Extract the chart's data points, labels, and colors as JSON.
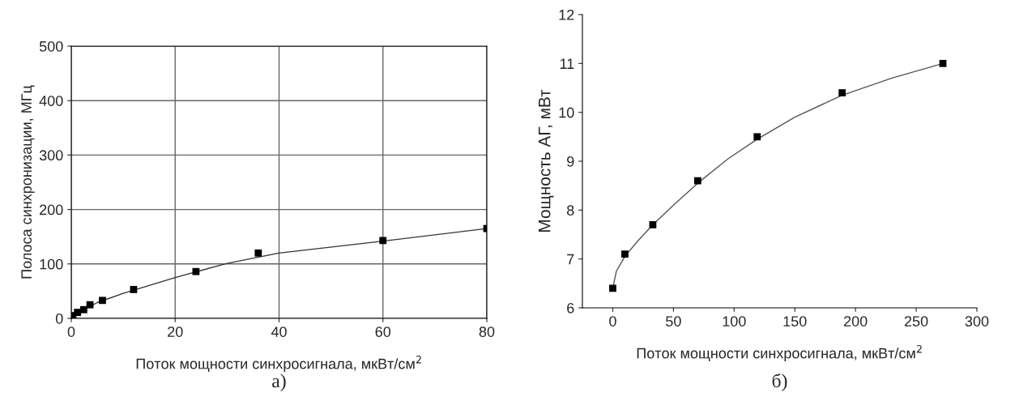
{
  "chart_data": [
    {
      "type": "scatter",
      "xlabel": "Поток мощности синхросигнала, мкВт/см$^{2}$",
      "ylabel": "Полоса синхронизации, МГц",
      "annotations": [
        "а)"
      ],
      "xlim": [
        0,
        80
      ],
      "ylim": [
        0,
        500
      ],
      "xticks": [
        0,
        20,
        40,
        60,
        80
      ],
      "yticks": [
        0,
        100,
        200,
        300,
        400,
        500
      ],
      "grid": true,
      "marker": "square",
      "series": [
        {
          "color": "#000000",
          "x": [
            0.3,
            1.2,
            2.4,
            3.6,
            6,
            12,
            24,
            36,
            60,
            80
          ],
          "values": [
            5,
            11,
            16,
            25,
            33,
            53,
            86,
            120,
            143,
            165
          ]
        },
        {
          "type": "line",
          "marker": "none",
          "color": "#333333",
          "x": [
            0.3,
            5,
            10,
            20,
            30,
            40,
            60,
            80
          ],
          "values": [
            5,
            29,
            46,
            75,
            101,
            120,
            142,
            165
          ]
        }
      ]
    },
    {
      "type": "scatter",
      "xlabel": "Поток мощности синхросигнала, мкВт/см$^{2}$",
      "ylabel": "Мощность АГ, мВт",
      "annotations": [
        "б)"
      ],
      "xlim": [
        -25,
        300
      ],
      "ylim": [
        6,
        12
      ],
      "xticks": [
        0,
        50,
        100,
        150,
        200,
        250,
        300
      ],
      "yticks": [
        6,
        7,
        8,
        9,
        10,
        11,
        12
      ],
      "grid": false,
      "marker": "square",
      "series": [
        {
          "color": "#000000",
          "x": [
            0,
            10,
            33,
            70,
            119,
            189,
            272
          ],
          "values": [
            6.4,
            7.1,
            7.7,
            8.6,
            9.5,
            10.4,
            11.0
          ]
        },
        {
          "type": "line",
          "marker": "none",
          "color": "#555555",
          "x": [
            0,
            3,
            10,
            20,
            33,
            50,
            70,
            95,
            119,
            150,
            189,
            230,
            272
          ],
          "values": [
            6.4,
            6.75,
            7.05,
            7.35,
            7.7,
            8.1,
            8.55,
            9.05,
            9.45,
            9.9,
            10.35,
            10.7,
            11.0
          ]
        }
      ]
    }
  ]
}
